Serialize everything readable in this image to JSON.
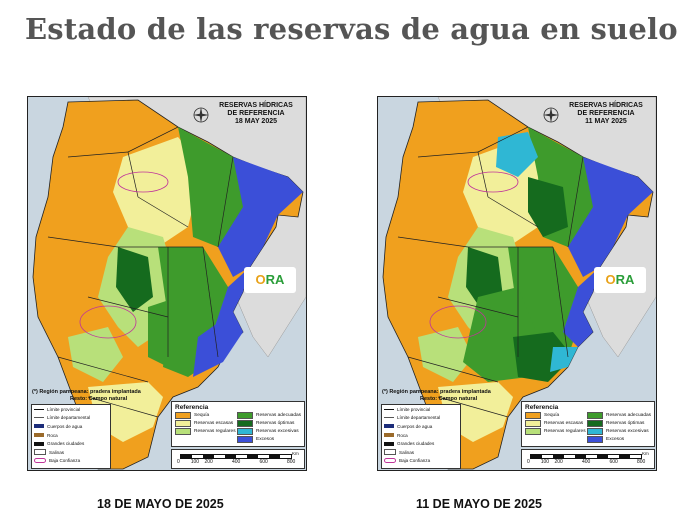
{
  "title": "Estado de las reservas de agua en suelo",
  "maps": [
    {
      "header": [
        "RESERVAS HÍDRICAS",
        "DE REFERENCIA",
        "18 MAY 2025"
      ],
      "caption": "18 DE MAYO DE 2025",
      "wet_level": "more_dry"
    },
    {
      "header": [
        "RESERVAS HÍDRICAS",
        "DE REFERENCIA",
        "11 MAY 2025"
      ],
      "caption": "11 DE MAYO DE 2025",
      "wet_level": "more_wet"
    }
  ],
  "logo": {
    "text_o": "O",
    "text_ra": "RA"
  },
  "note": [
    "(*) Región pampeana: pradera implantada",
    "Resto: Campo natural"
  ],
  "line_legend": [
    {
      "label": "Límite provincial",
      "symbol": "thick-line"
    },
    {
      "label": "Límite departamental",
      "symbol": "thin-line"
    },
    {
      "label": "Cuerpos de agua",
      "symbol": "water"
    },
    {
      "label": "Roca",
      "symbol": "rock"
    },
    {
      "label": "Grandes ciudades",
      "symbol": "city"
    },
    {
      "label": "Salinas",
      "symbol": "salt"
    },
    {
      "label": "Baja Confianza",
      "symbol": "low-confidence"
    }
  ],
  "reference": {
    "title": "Referencia",
    "items": [
      {
        "label": "Sequía",
        "color": "#f0a01e"
      },
      {
        "label": "Reservas adecuadas",
        "color": "#3e9b2c"
      },
      {
        "label": "Reservas escasas",
        "color": "#f2ef9a"
      },
      {
        "label": "Reservas óptimas",
        "color": "#156b1e"
      },
      {
        "label": "Reservas regulares",
        "color": "#b8e07a"
      },
      {
        "label": "Reservas excesivas",
        "color": "#2fb7d4"
      },
      {
        "label": "",
        "color": ""
      },
      {
        "label": "Excesos",
        "color": "#3b4fd8"
      }
    ]
  },
  "scale": {
    "unit": "Km",
    "ticks": [
      "0",
      "100",
      "200",
      "400",
      "600",
      "800"
    ]
  },
  "colors": {
    "sequia": "#f0a01e",
    "escasas": "#f2ef9a",
    "regulares": "#b8e07a",
    "adecuadas": "#3e9b2c",
    "optimas": "#156b1e",
    "excesivas": "#2fb7d4",
    "excesos": "#3b4fd8",
    "rock": "#9a6a2a",
    "neighbor": "#dcdcdc",
    "sea": "#c9d6e0"
  }
}
